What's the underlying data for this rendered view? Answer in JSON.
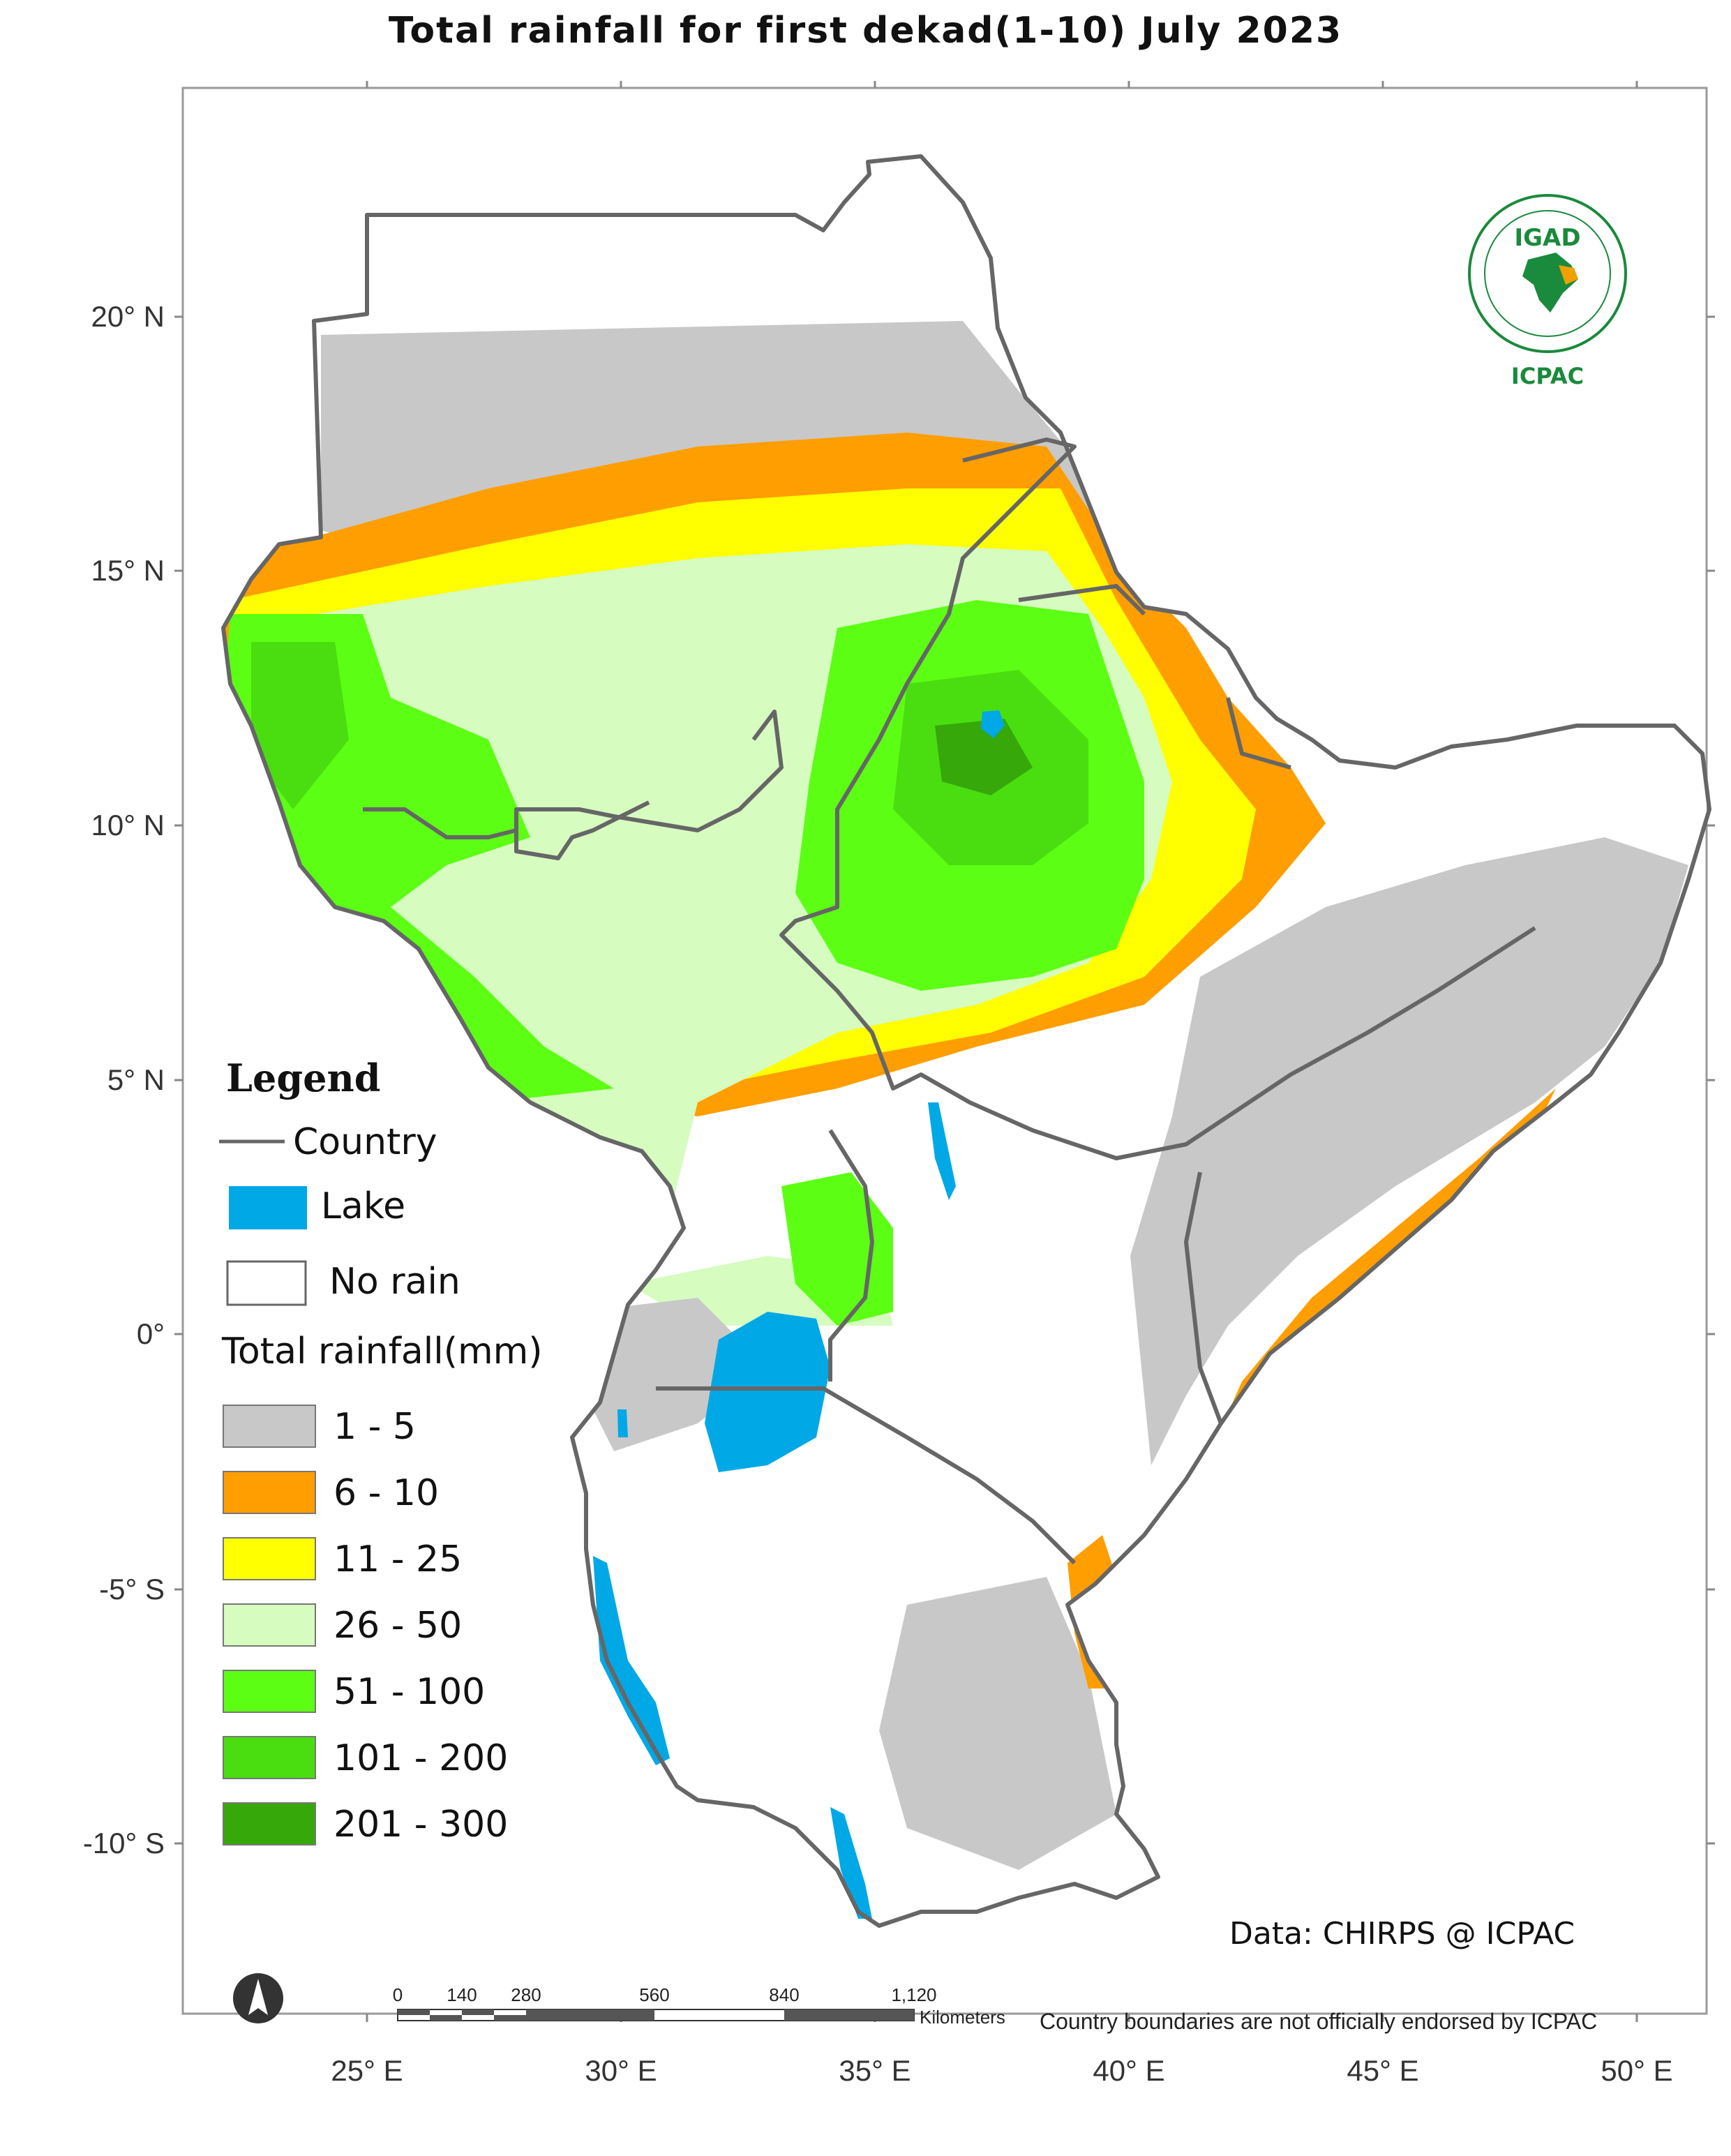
{
  "title": "Total rainfall  for  first dekad(1-10)  July  2023",
  "axes": {
    "lon_labels": [
      "25° E",
      "30° E",
      "35° E",
      "40° E",
      "45° E",
      "50° E"
    ],
    "lat_labels": [
      "20° N",
      "15° N",
      "10° N",
      "5° N",
      "0°",
      "-5° S",
      "-10° S"
    ]
  },
  "legend": {
    "heading": "Legend",
    "country_label": "Country",
    "lake_label": "Lake",
    "norain_label": "No rain",
    "rainfall_title": "Total rainfall(mm)",
    "classes": [
      {
        "label": "1 - 5",
        "color": "#c8c8c8"
      },
      {
        "label": "6 - 10",
        "color": "#ff9e00"
      },
      {
        "label": "11 - 25",
        "color": "#ffff00"
      },
      {
        "label": "26 - 50",
        "color": "#d6fcc0"
      },
      {
        "label": "51 - 100",
        "color": "#5cff14"
      },
      {
        "label": "101 - 200",
        "color": "#4ade10"
      },
      {
        "label": "201 - 300",
        "color": "#36a80a"
      }
    ],
    "lake_color": "#00a8e6",
    "country_color": "#666666"
  },
  "scalebar": {
    "ticks": [
      "0",
      "140",
      "280",
      "560",
      "840",
      "1,120"
    ],
    "unit": "Kilometers"
  },
  "credit": "Data: CHIRPS @ ICPAC",
  "disclaimer": "Country boundaries are not officially endorsed by ICPAC",
  "logo": {
    "top_text": "IGAD",
    "bottom_text": "ICPAC"
  }
}
